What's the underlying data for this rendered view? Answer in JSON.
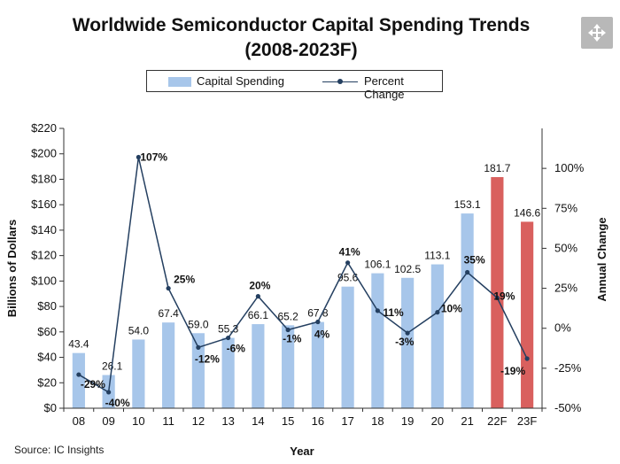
{
  "title_line1": "Worldwide Semiconductor Capital Spending Trends",
  "title_line2": "(2008-2023F)",
  "source": "Source: IC Insights",
  "legend": {
    "bar_label": "Capital Spending",
    "line_label": "Percent Change"
  },
  "chart_data": {
    "type": "bar",
    "title": "Worldwide Semiconductor Capital Spending Trends (2008-2023F)",
    "categories": [
      "08",
      "09",
      "10",
      "11",
      "12",
      "13",
      "14",
      "15",
      "16",
      "17",
      "18",
      "19",
      "20",
      "21",
      "22F",
      "23F"
    ],
    "series": [
      {
        "name": "Capital Spending",
        "axis": "left",
        "values": [
          43.4,
          26.1,
          54.0,
          67.4,
          59.0,
          55.3,
          66.1,
          65.2,
          67.8,
          95.6,
          106.1,
          102.5,
          113.1,
          153.1,
          181.7,
          146.6
        ],
        "value_labels": [
          "43.4",
          "26.1",
          "54.0",
          "67.4",
          "59.0",
          "55.3",
          "66.1",
          "65.2",
          "67.8",
          "95.6",
          "106.1",
          "102.5",
          "113.1",
          "153.1",
          "181.7",
          "146.6"
        ],
        "color": "#a7c6ea",
        "forecast_color": "#d9605e",
        "forecast_categories": [
          "22F",
          "23F"
        ]
      },
      {
        "name": "Percent Change",
        "type": "line",
        "axis": "right",
        "values": [
          -29,
          -40,
          107,
          25,
          -12,
          -6,
          20,
          -1,
          4,
          41,
          11,
          -3,
          10,
          35,
          19,
          -19
        ],
        "value_labels": [
          "-29%",
          "-40%",
          "107%",
          "25%",
          "-12%",
          "-6%",
          "20%",
          "-1%",
          "4%",
          "41%",
          "11%",
          "-3%",
          "10%",
          "35%",
          "19%",
          "-19%"
        ],
        "color": "#243f60"
      }
    ],
    "xlabel": "Year",
    "ylabel": "Billions of Dollars",
    "y2label": "Annual Change",
    "ylim": [
      0,
      220
    ],
    "yticks": [
      0,
      20,
      40,
      60,
      80,
      100,
      120,
      140,
      160,
      180,
      200,
      220
    ],
    "ytick_labels": [
      "$0",
      "$20",
      "$40",
      "$60",
      "$80",
      "$100",
      "$120",
      "$140",
      "$160",
      "$180",
      "$200",
      "$220"
    ],
    "y2lim": [
      -50,
      125
    ],
    "y2ticks": [
      -50,
      -25,
      0,
      25,
      50,
      75,
      100
    ],
    "y2tick_labels": [
      "-50%",
      "-25%",
      "0%",
      "25%",
      "50%",
      "75%",
      "100%"
    ],
    "legend_position": "top-center",
    "grid": false
  }
}
